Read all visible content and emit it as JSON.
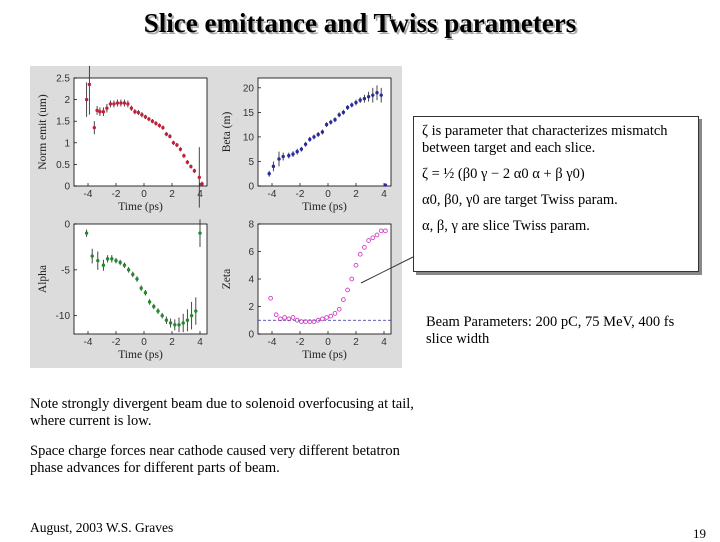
{
  "title": "Slice emittance and Twiss parameters",
  "info": {
    "line1": "ζ is parameter that characterizes mismatch between target and each slice.",
    "formula": "ζ = ½ (β0 γ − 2 α0 α + β γ0)",
    "targets": "α0, β0, γ0 are target Twiss param.",
    "slice": "α, β, γ are slice Twiss param."
  },
  "beam_params": "Beam Parameters: 200 pC, 75 MeV, 400 fs slice width",
  "notes": [
    "Note strongly divergent beam due to solenoid overfocusing at tail, where current is low.",
    "Space charge forces near cathode caused very different betatron phase advances for different parts of beam."
  ],
  "footer": "August, 2003  W.S. Graves",
  "page_number": "19",
  "colors": {
    "emit": "#c0203a",
    "beta": "#2a2aa0",
    "alpha": "#1f8a2a",
    "zeta": "#d43cc8",
    "errbar": "#333333"
  },
  "chart_data": [
    {
      "type": "scatter",
      "xlabel": "Time (ps)",
      "ylabel": "Norm emit (um)",
      "xlim": [
        -5,
        4.5
      ],
      "ylim": [
        0,
        2.5
      ],
      "xticks": [
        -4,
        -2,
        0,
        2,
        4
      ],
      "yticks": [
        0,
        0.5,
        1,
        1.5,
        2,
        2.5
      ],
      "x": [
        -4.1,
        -3.9,
        -3.55,
        -3.35,
        -3.15,
        -2.9,
        -2.65,
        -2.4,
        -2.15,
        -1.9,
        -1.65,
        -1.4,
        -1.15,
        -0.9,
        -0.65,
        -0.4,
        -0.15,
        0.1,
        0.35,
        0.6,
        0.85,
        1.1,
        1.35,
        1.6,
        1.85,
        2.1,
        2.35,
        2.6,
        2.85,
        3.1,
        3.35,
        3.6,
        3.95,
        4.15
      ],
      "y": [
        2.0,
        2.35,
        1.35,
        1.75,
        1.72,
        1.72,
        1.8,
        1.9,
        1.9,
        1.92,
        1.92,
        1.92,
        1.9,
        1.8,
        1.72,
        1.7,
        1.65,
        1.6,
        1.55,
        1.5,
        1.45,
        1.4,
        1.35,
        1.2,
        1.15,
        1.0,
        0.95,
        0.85,
        0.7,
        0.55,
        0.45,
        0.35,
        0.2,
        0.05
      ],
      "err": [
        0.4,
        0.7,
        0.15,
        0.1,
        0.1,
        0.1,
        0.1,
        0.08,
        0.08,
        0.08,
        0.08,
        0.08,
        0.08,
        0.06,
        0.06,
        0.06,
        0.06,
        0.05,
        0.05,
        0.05,
        0.05,
        0.05,
        0.05,
        0.05,
        0.05,
        0.05,
        0.05,
        0.05,
        0.05,
        0.05,
        0.05,
        0.05,
        0.7,
        0.05
      ]
    },
    {
      "type": "scatter",
      "xlabel": "Time (ps)",
      "ylabel": "Beta (m)",
      "xlim": [
        -5,
        4.5
      ],
      "ylim": [
        0,
        22
      ],
      "xticks": [
        -4,
        -2,
        0,
        2,
        4
      ],
      "yticks": [
        0,
        5,
        10,
        15,
        20
      ],
      "x": [
        -4.2,
        -3.9,
        -3.5,
        -3.2,
        -2.8,
        -2.5,
        -2.2,
        -1.9,
        -1.6,
        -1.3,
        -1.0,
        -0.7,
        -0.4,
        -0.1,
        0.2,
        0.5,
        0.8,
        1.1,
        1.4,
        1.7,
        2.0,
        2.3,
        2.6,
        2.9,
        3.2,
        3.5,
        3.8,
        4.1
      ],
      "y": [
        2.5,
        4.0,
        5.5,
        6.0,
        6.2,
        6.5,
        7.0,
        7.5,
        8.5,
        9.5,
        10.0,
        10.5,
        11.0,
        12.5,
        13.0,
        13.5,
        14.5,
        15.0,
        16.0,
        16.5,
        17.0,
        17.5,
        17.8,
        18.2,
        18.5,
        19.0,
        18.5,
        0.2
      ],
      "err": [
        0.6,
        1.0,
        1.5,
        0.8,
        0.6,
        0.6,
        0.6,
        0.5,
        0.5,
        0.5,
        0.5,
        0.5,
        0.5,
        0.5,
        0.5,
        0.5,
        0.5,
        0.5,
        0.5,
        0.5,
        0.6,
        0.6,
        0.8,
        1.0,
        1.5,
        1.5,
        1.5,
        0.2
      ]
    },
    {
      "type": "scatter",
      "xlabel": "Time (ps)",
      "ylabel": "Alpha",
      "xlim": [
        -5,
        4.5
      ],
      "ylim": [
        -12,
        0
      ],
      "xticks": [
        -4,
        -2,
        0,
        2,
        4
      ],
      "yticks": [
        -10,
        -5,
        0
      ],
      "x": [
        -4.1,
        -3.7,
        -3.3,
        -2.9,
        -2.6,
        -2.3,
        -2.0,
        -1.7,
        -1.4,
        -1.1,
        -0.8,
        -0.5,
        -0.2,
        0.1,
        0.4,
        0.7,
        1.0,
        1.3,
        1.6,
        1.9,
        2.2,
        2.5,
        2.8,
        3.1,
        3.4,
        3.7,
        4.0
      ],
      "y": [
        -1.0,
        -3.5,
        -4.0,
        -4.5,
        -3.8,
        -3.8,
        -4.0,
        -4.2,
        -4.5,
        -5.0,
        -5.5,
        -6.0,
        -7.0,
        -7.5,
        -8.5,
        -9.0,
        -9.5,
        -10.0,
        -10.5,
        -10.8,
        -11.0,
        -11.0,
        -10.8,
        -10.5,
        -10.0,
        -9.5,
        -1.0
      ],
      "err": [
        0.4,
        0.8,
        1.0,
        0.6,
        0.4,
        0.4,
        0.3,
        0.3,
        0.3,
        0.3,
        0.3,
        0.3,
        0.3,
        0.3,
        0.3,
        0.3,
        0.3,
        0.3,
        0.4,
        0.5,
        0.6,
        0.8,
        1.0,
        1.2,
        1.5,
        1.5,
        1.5
      ]
    },
    {
      "type": "scatter",
      "xlabel": "Time (ps)",
      "ylabel": "Zeta",
      "xlim": [
        -5,
        4.5
      ],
      "ylim": [
        0,
        8
      ],
      "xticks": [
        -4,
        -2,
        0,
        2,
        4
      ],
      "yticks": [
        0,
        2,
        4,
        6,
        8
      ],
      "x": [
        -4.1,
        -3.7,
        -3.4,
        -3.1,
        -2.8,
        -2.5,
        -2.2,
        -1.9,
        -1.6,
        -1.3,
        -1.0,
        -0.7,
        -0.4,
        -0.1,
        0.2,
        0.5,
        0.8,
        1.1,
        1.4,
        1.7,
        2.0,
        2.3,
        2.6,
        2.9,
        3.2,
        3.5,
        3.8,
        4.1
      ],
      "y": [
        2.6,
        1.4,
        1.1,
        1.2,
        1.1,
        1.2,
        1.0,
        0.9,
        0.9,
        0.9,
        0.9,
        1.0,
        1.1,
        1.2,
        1.3,
        1.5,
        1.8,
        2.5,
        3.2,
        4.0,
        5.0,
        5.8,
        6.3,
        6.8,
        7.0,
        7.2,
        7.5,
        7.5
      ],
      "reference_line": 1.0
    }
  ]
}
